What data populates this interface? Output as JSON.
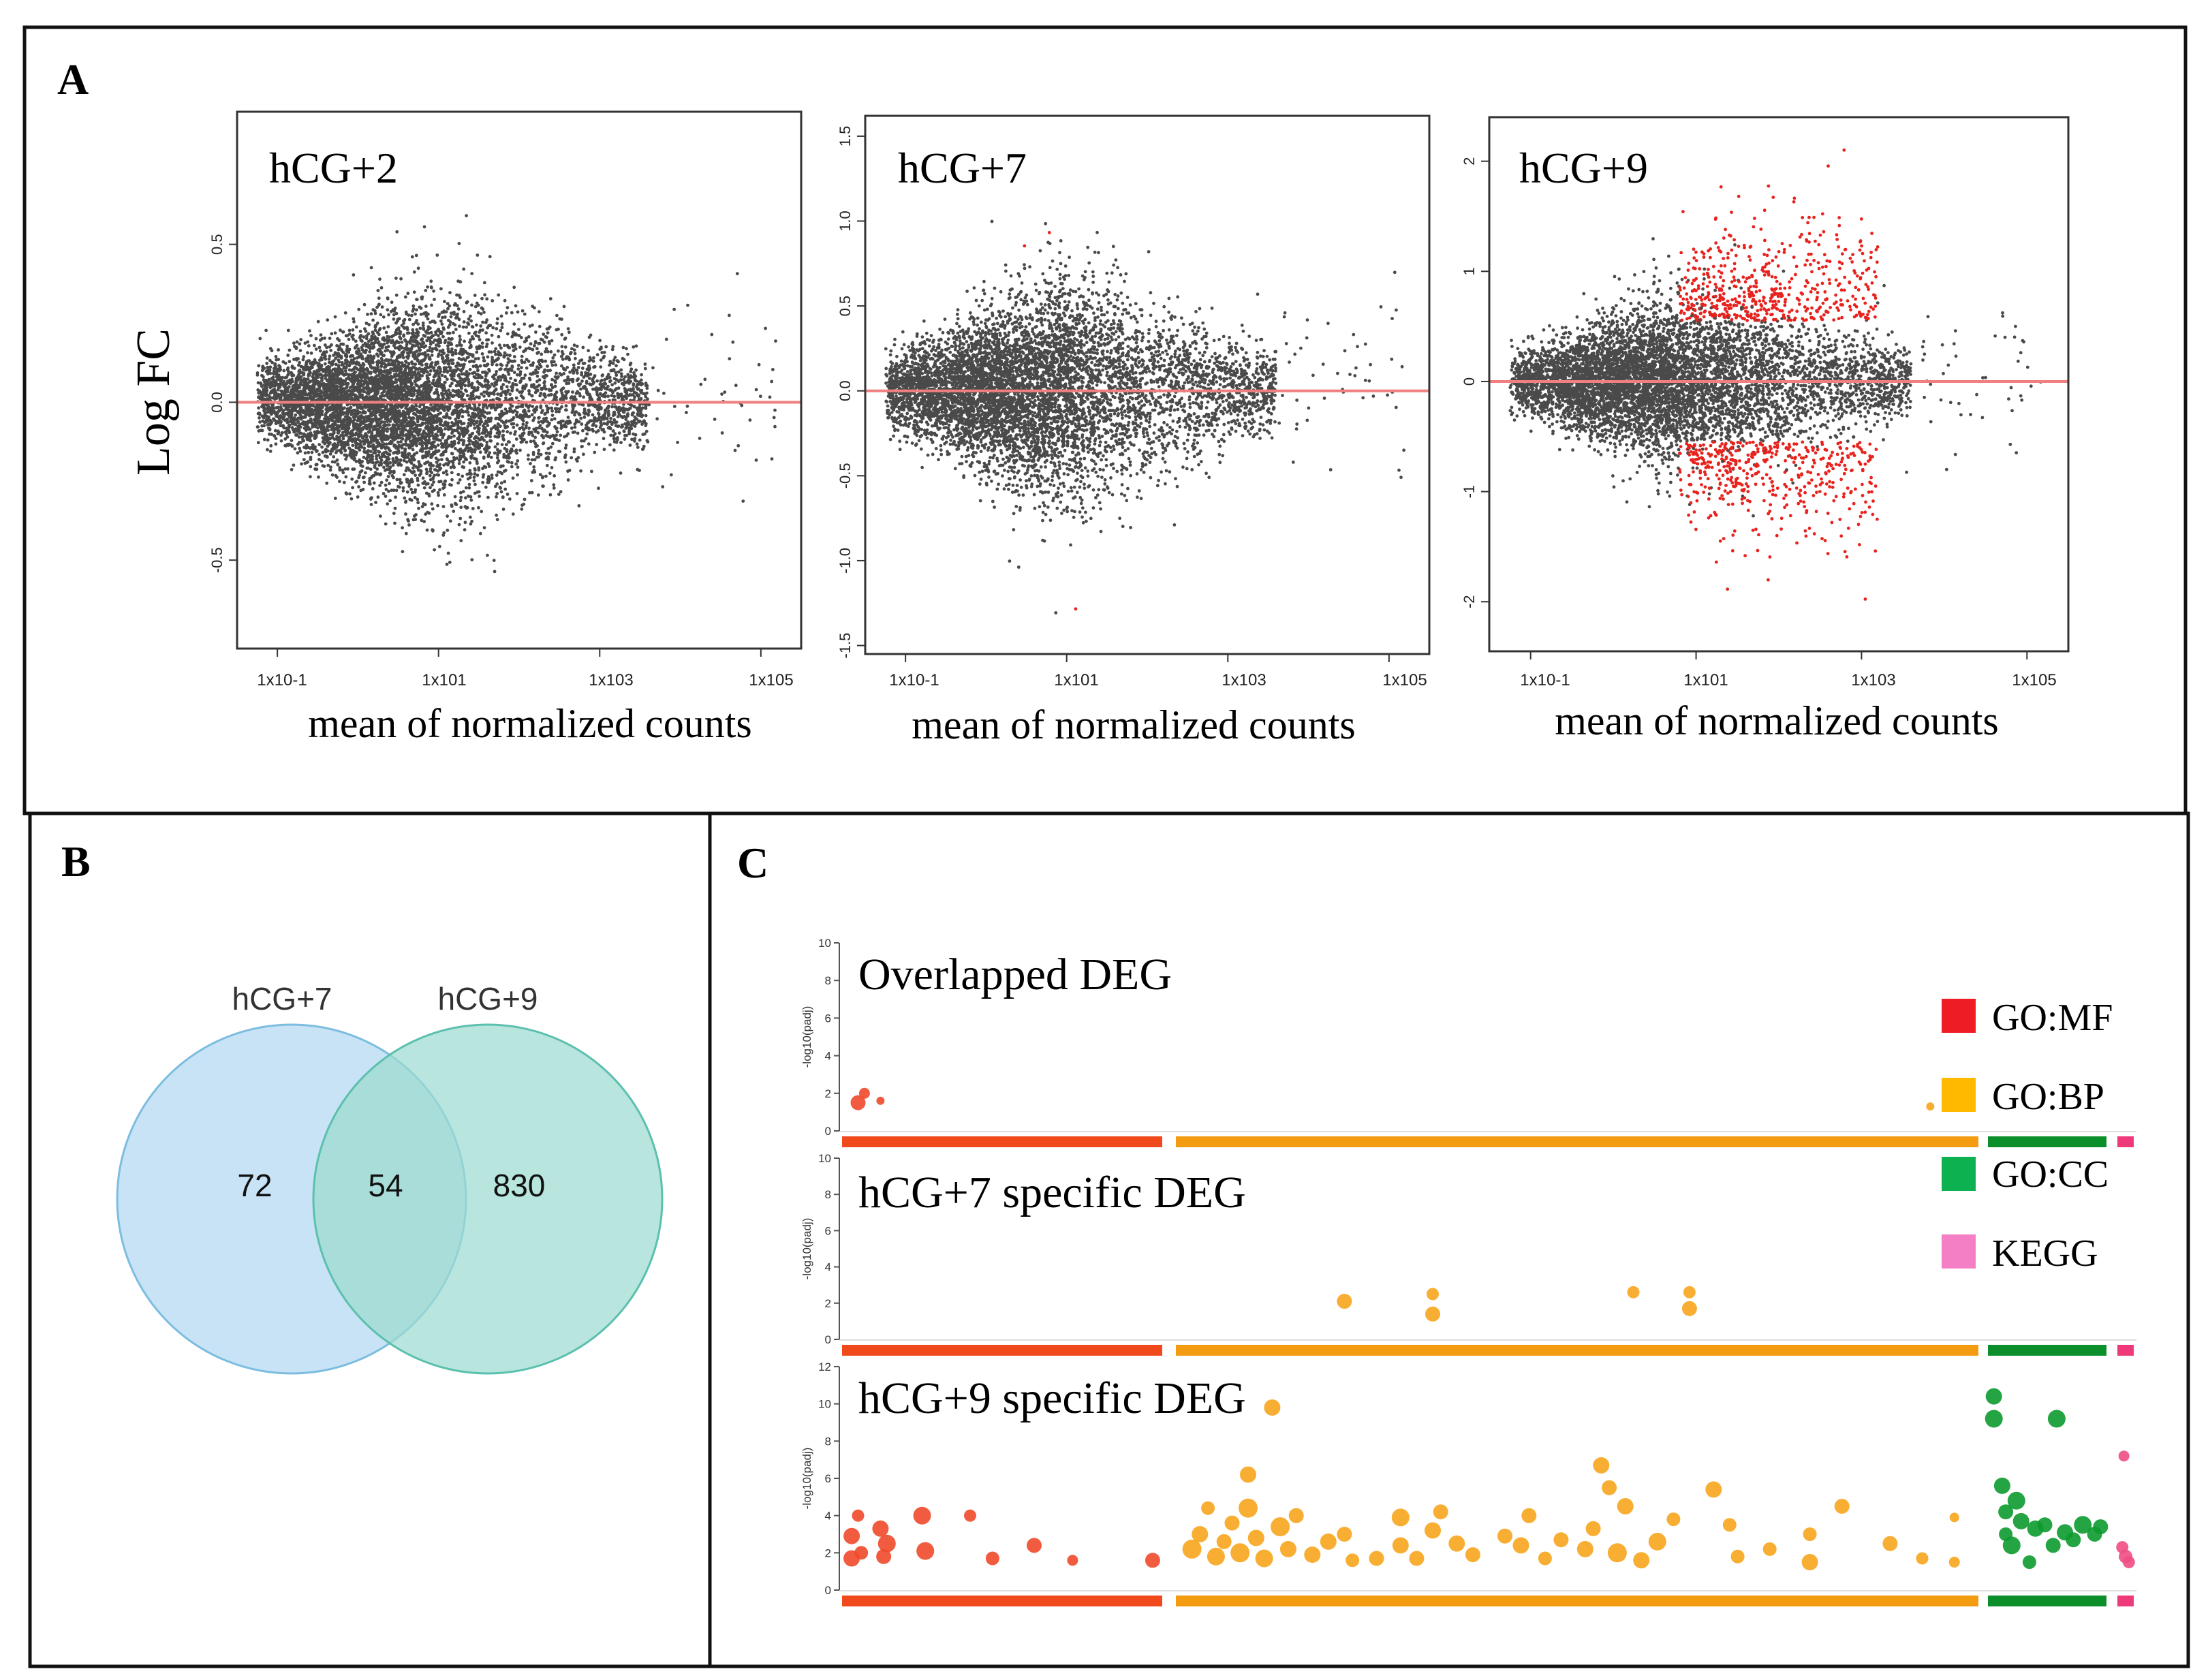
{
  "panels": {
    "a": "A",
    "b": "B",
    "c": "C"
  },
  "ma_shared": {
    "ylabel": "Log FC",
    "xlabel": "mean of normalized counts",
    "xticks": [
      "1x10-1",
      "1x101",
      "1x103",
      "1x105"
    ]
  },
  "chart_data": [
    {
      "type": "scatter",
      "panel": "A",
      "title": "hCG+2",
      "xlabel": "mean of normalized counts",
      "ylabel": "Log FC",
      "x_scale": "log10",
      "xlim": [
        -1.5,
        5.5
      ],
      "ylim": [
        -0.78,
        0.92
      ],
      "yticks": [
        -0.5,
        0.0,
        0.5
      ],
      "ytick_labels": [
        "-0.5",
        "0.0",
        "0.5"
      ],
      "reference_line": 0,
      "spread_half_width_at_peak": 0.42,
      "significant_points": 0,
      "colors": {
        "points": "#4a4a4a",
        "significant": "#e8231e",
        "reference": "#f08080"
      }
    },
    {
      "type": "scatter",
      "panel": "A",
      "title": "hCG+7",
      "xlabel": "mean of normalized counts",
      "x_scale": "log10",
      "xlim": [
        -1.5,
        5.5
      ],
      "ylim": [
        -1.55,
        1.62
      ],
      "yticks": [
        -1.5,
        -1.0,
        -0.5,
        0.0,
        0.5,
        1.0,
        1.5
      ],
      "ytick_labels": [
        "-1.5",
        "-1.0",
        "-0.5",
        "0.0",
        "0.5",
        "1.0",
        "1.5"
      ],
      "reference_line": 0,
      "spread_half_width_at_peak": 0.8,
      "significant_points": 8,
      "colors": {
        "points": "#4a4a4a",
        "significant": "#e8231e",
        "reference": "#f08080"
      }
    },
    {
      "type": "scatter",
      "panel": "A",
      "title": "hCG+9",
      "xlabel": "mean of normalized counts",
      "x_scale": "log10",
      "xlim": [
        -1.5,
        5.5
      ],
      "ylim": [
        -2.45,
        2.4
      ],
      "yticks": [
        -2,
        -1,
        0,
        1,
        2
      ],
      "ytick_labels": [
        "-2",
        "-1",
        "0",
        "1",
        "2"
      ],
      "reference_line": 0,
      "spread_half_width_at_peak": 1.0,
      "significant_points": 900,
      "colors": {
        "points": "#4a4a4a",
        "significant": "#e8231e",
        "reference": "#f08080"
      }
    },
    {
      "type": "venn",
      "panel": "B",
      "sets": [
        "hCG+7",
        "hCG+9"
      ],
      "only_a": 72,
      "overlap": 54,
      "only_b": 830,
      "colors": {
        "a": "#aad4ef",
        "b": "#9ddbd0",
        "a_edge": "#7cbde0",
        "b_edge": "#5cc0ae"
      }
    },
    {
      "type": "scatter",
      "panel": "C",
      "title": "Overlapped DEG",
      "ylabel": "-log10(padj)",
      "ylim": [
        0,
        10
      ],
      "yticks": [
        0,
        2,
        4,
        6,
        8,
        10
      ],
      "categories": [
        "GO:MF",
        "GO:BP",
        "GO:CC",
        "KEGG"
      ],
      "points": [
        {
          "source": "GO:MF",
          "pos": 0.05,
          "value": 1.5,
          "size": 11
        },
        {
          "source": "GO:MF",
          "pos": 0.07,
          "value": 2.0,
          "size": 8
        },
        {
          "source": "GO:MF",
          "pos": 0.12,
          "value": 1.6,
          "size": 6
        },
        {
          "source": "GO:BP",
          "pos": 0.94,
          "value": 1.3,
          "size": 6
        }
      ]
    },
    {
      "type": "scatter",
      "panel": "C",
      "title": "hCG+7 specific DEG",
      "ylabel": "-log10(padj)",
      "ylim": [
        0,
        10
      ],
      "yticks": [
        0,
        2,
        4,
        6,
        8,
        10
      ],
      "categories": [
        "GO:MF",
        "GO:BP",
        "GO:CC",
        "KEGG"
      ],
      "points": [
        {
          "source": "GO:BP",
          "pos": 0.21,
          "value": 2.1,
          "size": 11
        },
        {
          "source": "GO:BP",
          "pos": 0.32,
          "value": 2.5,
          "size": 9
        },
        {
          "source": "GO:BP",
          "pos": 0.32,
          "value": 1.4,
          "size": 11
        },
        {
          "source": "GO:BP",
          "pos": 0.57,
          "value": 2.6,
          "size": 9
        },
        {
          "source": "GO:BP",
          "pos": 0.64,
          "value": 2.6,
          "size": 9
        },
        {
          "source": "GO:BP",
          "pos": 0.64,
          "value": 1.7,
          "size": 11
        }
      ]
    },
    {
      "type": "scatter",
      "panel": "C",
      "title": "hCG+9 specific DEG",
      "ylabel": "-log10(padj)",
      "ylim": [
        0,
        12
      ],
      "yticks": [
        0,
        2,
        4,
        6,
        8,
        10,
        12
      ],
      "categories": [
        "GO:MF",
        "GO:BP",
        "GO:CC",
        "KEGG"
      ],
      "points": [
        {
          "source": "GO:MF",
          "pos": 0.03,
          "value": 2.9,
          "size": 12
        },
        {
          "source": "GO:MF",
          "pos": 0.03,
          "value": 1.7,
          "size": 12
        },
        {
          "source": "GO:MF",
          "pos": 0.05,
          "value": 4.0,
          "size": 9
        },
        {
          "source": "GO:MF",
          "pos": 0.06,
          "value": 2.0,
          "size": 10
        },
        {
          "source": "GO:MF",
          "pos": 0.12,
          "value": 3.3,
          "size": 12
        },
        {
          "source": "GO:MF",
          "pos": 0.13,
          "value": 1.8,
          "size": 11
        },
        {
          "source": "GO:MF",
          "pos": 0.14,
          "value": 2.5,
          "size": 13
        },
        {
          "source": "GO:MF",
          "pos": 0.25,
          "value": 4.0,
          "size": 13
        },
        {
          "source": "GO:MF",
          "pos": 0.26,
          "value": 2.1,
          "size": 13
        },
        {
          "source": "GO:MF",
          "pos": 0.4,
          "value": 4.0,
          "size": 9
        },
        {
          "source": "GO:MF",
          "pos": 0.47,
          "value": 1.7,
          "size": 10
        },
        {
          "source": "GO:MF",
          "pos": 0.6,
          "value": 2.4,
          "size": 11
        },
        {
          "source": "GO:MF",
          "pos": 0.72,
          "value": 1.6,
          "size": 8
        },
        {
          "source": "GO:MF",
          "pos": 0.97,
          "value": 1.6,
          "size": 11
        },
        {
          "source": "GO:BP",
          "pos": 0.02,
          "value": 2.2,
          "size": 14
        },
        {
          "source": "GO:BP",
          "pos": 0.03,
          "value": 3.0,
          "size": 12
        },
        {
          "source": "GO:BP",
          "pos": 0.04,
          "value": 4.4,
          "size": 10
        },
        {
          "source": "GO:BP",
          "pos": 0.05,
          "value": 1.8,
          "size": 13
        },
        {
          "source": "GO:BP",
          "pos": 0.06,
          "value": 2.6,
          "size": 11
        },
        {
          "source": "GO:BP",
          "pos": 0.07,
          "value": 3.6,
          "size": 11
        },
        {
          "source": "GO:BP",
          "pos": 0.08,
          "value": 2.0,
          "size": 14
        },
        {
          "source": "GO:BP",
          "pos": 0.09,
          "value": 6.2,
          "size": 12
        },
        {
          "source": "GO:BP",
          "pos": 0.09,
          "value": 4.4,
          "size": 14
        },
        {
          "source": "GO:BP",
          "pos": 0.1,
          "value": 2.8,
          "size": 12
        },
        {
          "source": "GO:BP",
          "pos": 0.11,
          "value": 1.7,
          "size": 13
        },
        {
          "source": "GO:BP",
          "pos": 0.12,
          "value": 9.8,
          "size": 12
        },
        {
          "source": "GO:BP",
          "pos": 0.13,
          "value": 3.4,
          "size": 14
        },
        {
          "source": "GO:BP",
          "pos": 0.14,
          "value": 2.2,
          "size": 12
        },
        {
          "source": "GO:BP",
          "pos": 0.15,
          "value": 4.0,
          "size": 11
        },
        {
          "source": "GO:BP",
          "pos": 0.17,
          "value": 1.9,
          "size": 12
        },
        {
          "source": "GO:BP",
          "pos": 0.19,
          "value": 2.6,
          "size": 12
        },
        {
          "source": "GO:BP",
          "pos": 0.21,
          "value": 3.0,
          "size": 11
        },
        {
          "source": "GO:BP",
          "pos": 0.22,
          "value": 1.6,
          "size": 10
        },
        {
          "source": "GO:BP",
          "pos": 0.25,
          "value": 1.7,
          "size": 11
        },
        {
          "source": "GO:BP",
          "pos": 0.28,
          "value": 3.9,
          "size": 13
        },
        {
          "source": "GO:BP",
          "pos": 0.28,
          "value": 2.4,
          "size": 12
        },
        {
          "source": "GO:BP",
          "pos": 0.3,
          "value": 1.7,
          "size": 11
        },
        {
          "source": "GO:BP",
          "pos": 0.32,
          "value": 3.2,
          "size": 12
        },
        {
          "source": "GO:BP",
          "pos": 0.33,
          "value": 4.2,
          "size": 11
        },
        {
          "source": "GO:BP",
          "pos": 0.35,
          "value": 2.5,
          "size": 12
        },
        {
          "source": "GO:BP",
          "pos": 0.37,
          "value": 1.9,
          "size": 11
        },
        {
          "source": "GO:BP",
          "pos": 0.41,
          "value": 2.9,
          "size": 11
        },
        {
          "source": "GO:BP",
          "pos": 0.43,
          "value": 2.4,
          "size": 12
        },
        {
          "source": "GO:BP",
          "pos": 0.44,
          "value": 4.0,
          "size": 11
        },
        {
          "source": "GO:BP",
          "pos": 0.46,
          "value": 1.7,
          "size": 10
        },
        {
          "source": "GO:BP",
          "pos": 0.48,
          "value": 2.7,
          "size": 11
        },
        {
          "source": "GO:BP",
          "pos": 0.51,
          "value": 2.2,
          "size": 12
        },
        {
          "source": "GO:BP",
          "pos": 0.52,
          "value": 3.3,
          "size": 11
        },
        {
          "source": "GO:BP",
          "pos": 0.53,
          "value": 6.7,
          "size": 12
        },
        {
          "source": "GO:BP",
          "pos": 0.54,
          "value": 5.5,
          "size": 11
        },
        {
          "source": "GO:BP",
          "pos": 0.55,
          "value": 2.0,
          "size": 14
        },
        {
          "source": "GO:BP",
          "pos": 0.56,
          "value": 4.5,
          "size": 12
        },
        {
          "source": "GO:BP",
          "pos": 0.58,
          "value": 1.6,
          "size": 12
        },
        {
          "source": "GO:BP",
          "pos": 0.6,
          "value": 2.6,
          "size": 13
        },
        {
          "source": "GO:BP",
          "pos": 0.62,
          "value": 3.8,
          "size": 10
        },
        {
          "source": "GO:BP",
          "pos": 0.67,
          "value": 5.4,
          "size": 12
        },
        {
          "source": "GO:BP",
          "pos": 0.69,
          "value": 3.5,
          "size": 10
        },
        {
          "source": "GO:BP",
          "pos": 0.7,
          "value": 1.8,
          "size": 10
        },
        {
          "source": "GO:BP",
          "pos": 0.74,
          "value": 2.2,
          "size": 10
        },
        {
          "source": "GO:BP",
          "pos": 0.79,
          "value": 3.0,
          "size": 10
        },
        {
          "source": "GO:BP",
          "pos": 0.79,
          "value": 1.5,
          "size": 12
        },
        {
          "source": "GO:BP",
          "pos": 0.83,
          "value": 4.5,
          "size": 11
        },
        {
          "source": "GO:BP",
          "pos": 0.89,
          "value": 2.5,
          "size": 11
        },
        {
          "source": "GO:BP",
          "pos": 0.93,
          "value": 1.7,
          "size": 9
        },
        {
          "source": "GO:BP",
          "pos": 0.97,
          "value": 3.9,
          "size": 7
        },
        {
          "source": "GO:BP",
          "pos": 0.97,
          "value": 1.5,
          "size": 8
        },
        {
          "source": "GO:CC",
          "pos": 0.05,
          "value": 10.4,
          "size": 12
        },
        {
          "source": "GO:CC",
          "pos": 0.05,
          "value": 9.2,
          "size": 13
        },
        {
          "source": "GO:CC",
          "pos": 0.12,
          "value": 5.6,
          "size": 12
        },
        {
          "source": "GO:CC",
          "pos": 0.15,
          "value": 4.2,
          "size": 11
        },
        {
          "source": "GO:CC",
          "pos": 0.15,
          "value": 3.0,
          "size": 10
        },
        {
          "source": "GO:CC",
          "pos": 0.2,
          "value": 2.4,
          "size": 13
        },
        {
          "source": "GO:CC",
          "pos": 0.24,
          "value": 4.8,
          "size": 13
        },
        {
          "source": "GO:CC",
          "pos": 0.28,
          "value": 3.7,
          "size": 12
        },
        {
          "source": "GO:CC",
          "pos": 0.35,
          "value": 1.5,
          "size": 10
        },
        {
          "source": "GO:CC",
          "pos": 0.4,
          "value": 3.3,
          "size": 12
        },
        {
          "source": "GO:CC",
          "pos": 0.48,
          "value": 3.5,
          "size": 11
        },
        {
          "source": "GO:CC",
          "pos": 0.55,
          "value": 2.4,
          "size": 11
        },
        {
          "source": "GO:CC",
          "pos": 0.58,
          "value": 9.2,
          "size": 13
        },
        {
          "source": "GO:CC",
          "pos": 0.65,
          "value": 3.1,
          "size": 12
        },
        {
          "source": "GO:CC",
          "pos": 0.72,
          "value": 2.7,
          "size": 11
        },
        {
          "source": "GO:CC",
          "pos": 0.8,
          "value": 3.5,
          "size": 13
        },
        {
          "source": "GO:CC",
          "pos": 0.9,
          "value": 3.0,
          "size": 11
        },
        {
          "source": "GO:CC",
          "pos": 0.95,
          "value": 3.4,
          "size": 11
        },
        {
          "source": "KEGG",
          "pos": 0.4,
          "value": 7.2,
          "size": 8
        },
        {
          "source": "KEGG",
          "pos": 0.3,
          "value": 2.3,
          "size": 9
        },
        {
          "source": "KEGG",
          "pos": 0.5,
          "value": 1.8,
          "size": 10
        },
        {
          "source": "KEGG",
          "pos": 0.7,
          "value": 1.5,
          "size": 9
        }
      ]
    }
  ],
  "legend": [
    {
      "label": "GO:MF",
      "color": "#ee1c24"
    },
    {
      "label": "GO:BP",
      "color": "#ffba00"
    },
    {
      "label": "GO:CC",
      "color": "#0db150"
    },
    {
      "label": "KEGG",
      "color": "#f57fc5"
    }
  ],
  "dot_colors": {
    "GO:MF": "#ef4a2b",
    "GO:BP": "#f7a51c",
    "GO:CC": "#0c9a2f",
    "KEGG": "#ee4e84"
  },
  "bar_colors": {
    "GO:MF": "#f04a1c",
    "GO:BP": "#f39c12",
    "GO:CC": "#0c8f2a",
    "KEGG": "#ee3a7a"
  }
}
